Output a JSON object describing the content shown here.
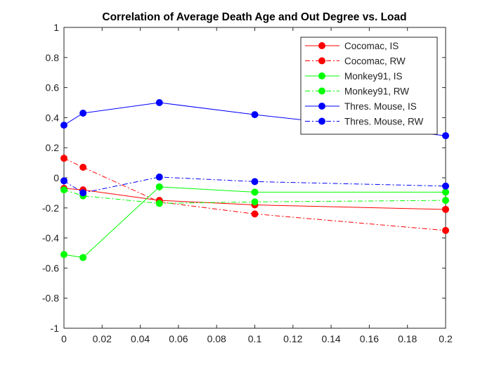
{
  "chart_data": {
    "type": "line",
    "title": "Correlation of Average Death Age and Out Degree vs. Load",
    "xlabel": "",
    "ylabel": "",
    "xlim": [
      0,
      0.2
    ],
    "ylim": [
      -1,
      1
    ],
    "x_ticks": [
      "0",
      "0.02",
      "0.04",
      "0.06",
      "0.08",
      "0.1",
      "0.12",
      "0.14",
      "0.16",
      "0.18",
      "0.2"
    ],
    "y_ticks": [
      "1",
      "0.8",
      "0.6",
      "0.4",
      "0.2",
      "0",
      "-0.2",
      "-0.4",
      "-0.6",
      "-0.8",
      "-1"
    ],
    "grid": false,
    "legend_position": "top-right",
    "x": [
      0,
      0.01,
      0.05,
      0.1,
      0.2
    ],
    "series": [
      {
        "name": "Cocomac, IS",
        "color": "#ff0000",
        "linestyle": "solid",
        "values": [
          -0.07,
          -0.08,
          -0.15,
          -0.18,
          -0.21
        ]
      },
      {
        "name": "Cocomac, RW",
        "color": "#ff0000",
        "linestyle": "dashdot",
        "values": [
          0.13,
          0.07,
          -0.16,
          -0.24,
          -0.35
        ]
      },
      {
        "name": "Monkey91, IS",
        "color": "#00ff00",
        "linestyle": "solid",
        "values": [
          -0.51,
          -0.53,
          -0.06,
          -0.095,
          -0.095
        ]
      },
      {
        "name": "Monkey91, RW",
        "color": "#00ff00",
        "linestyle": "dashdot",
        "values": [
          -0.08,
          -0.12,
          -0.17,
          -0.16,
          -0.15
        ]
      },
      {
        "name": "Thres. Mouse, IS",
        "color": "#0000ff",
        "linestyle": "solid",
        "values": [
          0.35,
          0.43,
          0.5,
          0.42,
          0.28
        ]
      },
      {
        "name": "Thres. Mouse, RW",
        "color": "#0000ff",
        "linestyle": "dashdot",
        "values": [
          -0.02,
          -0.1,
          0.005,
          -0.025,
          -0.055
        ]
      }
    ]
  }
}
